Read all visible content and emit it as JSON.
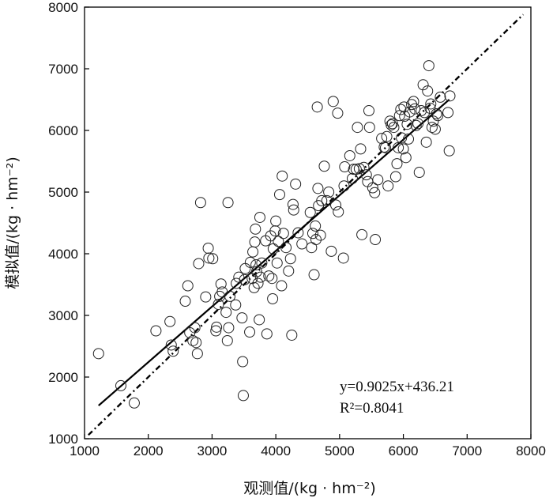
{
  "chart_data": {
    "type": "scatter",
    "title": "",
    "xlabel": "观测值/(kg · hm⁻²)",
    "ylabel": "模拟值/(kg · hm⁻²)",
    "xlim": [
      1000,
      8000
    ],
    "ylim": [
      1000,
      8000
    ],
    "x_ticks": [
      "1000",
      "2000",
      "3000",
      "4000",
      "5000",
      "6000",
      "7000",
      "8000"
    ],
    "y_ticks": [
      "1000",
      "2000",
      "3000",
      "4000",
      "5000",
      "6000",
      "7000",
      "8000"
    ],
    "grid": false,
    "legend": "none",
    "marker": "open-circle",
    "annotations": {
      "equation": "y=0.9025x+436.21",
      "r_squared": "R²=0.8041"
    },
    "fit_line": {
      "slope": 0.9025,
      "intercept": 436.21,
      "x_range": [
        1220,
        6720
      ],
      "style": "solid"
    },
    "reference_line": {
      "slope": 1,
      "intercept": 0,
      "x_range": [
        1060,
        7880
      ],
      "style": "dash-dot"
    },
    "points": [
      [
        1220,
        2380
      ],
      [
        1570,
        1860
      ],
      [
        1780,
        1580
      ],
      [
        2120,
        2750
      ],
      [
        2340,
        2900
      ],
      [
        2360,
        2520
      ],
      [
        2390,
        2420
      ],
      [
        2580,
        3230
      ],
      [
        2620,
        3480
      ],
      [
        2650,
        2720
      ],
      [
        2700,
        2590
      ],
      [
        2730,
        2800
      ],
      [
        2750,
        2560
      ],
      [
        2770,
        2380
      ],
      [
        2790,
        3840
      ],
      [
        2820,
        4830
      ],
      [
        2900,
        3300
      ],
      [
        2940,
        4090
      ],
      [
        2950,
        3930
      ],
      [
        3010,
        3920
      ],
      [
        3060,
        2750
      ],
      [
        3070,
        2810
      ],
      [
        3100,
        3180
      ],
      [
        3120,
        3310
      ],
      [
        3140,
        3510
      ],
      [
        3160,
        3380
      ],
      [
        3220,
        3050
      ],
      [
        3240,
        2590
      ],
      [
        3250,
        4830
      ],
      [
        3260,
        2800
      ],
      [
        3280,
        3310
      ],
      [
        3370,
        3170
      ],
      [
        3380,
        3520
      ],
      [
        3420,
        3620
      ],
      [
        3470,
        2960
      ],
      [
        3480,
        2250
      ],
      [
        3490,
        1700
      ],
      [
        3510,
        3580
      ],
      [
        3520,
        3760
      ],
      [
        3590,
        2730
      ],
      [
        3600,
        3860
      ],
      [
        3630,
        3600
      ],
      [
        3640,
        4030
      ],
      [
        3660,
        3450
      ],
      [
        3670,
        4190
      ],
      [
        3680,
        4400
      ],
      [
        3690,
        3820
      ],
      [
        3700,
        3710
      ],
      [
        3720,
        3520
      ],
      [
        3740,
        2930
      ],
      [
        3750,
        4590
      ],
      [
        3760,
        3620
      ],
      [
        3780,
        3850
      ],
      [
        3840,
        4210
      ],
      [
        3860,
        2700
      ],
      [
        3890,
        3640
      ],
      [
        3920,
        4290
      ],
      [
        3940,
        3600
      ],
      [
        3950,
        3270
      ],
      [
        3960,
        4080
      ],
      [
        3990,
        4370
      ],
      [
        4000,
        4530
      ],
      [
        4020,
        3850
      ],
      [
        4040,
        4200
      ],
      [
        4060,
        4960
      ],
      [
        4090,
        3480
      ],
      [
        4100,
        5260
      ],
      [
        4120,
        4330
      ],
      [
        4160,
        4100
      ],
      [
        4200,
        3720
      ],
      [
        4230,
        3920
      ],
      [
        4250,
        2680
      ],
      [
        4270,
        4800
      ],
      [
        4280,
        4710
      ],
      [
        4310,
        5130
      ],
      [
        4350,
        4340
      ],
      [
        4410,
        4160
      ],
      [
        4540,
        4670
      ],
      [
        4560,
        4100
      ],
      [
        4580,
        4330
      ],
      [
        4600,
        3660
      ],
      [
        4620,
        4450
      ],
      [
        4630,
        4230
      ],
      [
        4650,
        6380
      ],
      [
        4660,
        5060
      ],
      [
        4670,
        4780
      ],
      [
        4700,
        4300
      ],
      [
        4720,
        4860
      ],
      [
        4760,
        5420
      ],
      [
        4800,
        4860
      ],
      [
        4830,
        5000
      ],
      [
        4870,
        4040
      ],
      [
        4900,
        6470
      ],
      [
        4940,
        4790
      ],
      [
        4970,
        6280
      ],
      [
        4980,
        4680
      ],
      [
        5060,
        3930
      ],
      [
        5070,
        5100
      ],
      [
        5080,
        5410
      ],
      [
        5160,
        5590
      ],
      [
        5200,
        5220
      ],
      [
        5220,
        5370
      ],
      [
        5260,
        5370
      ],
      [
        5280,
        6050
      ],
      [
        5310,
        5380
      ],
      [
        5330,
        5700
      ],
      [
        5350,
        4310
      ],
      [
        5380,
        5400
      ],
      [
        5420,
        5280
      ],
      [
        5440,
        5170
      ],
      [
        5460,
        6320
      ],
      [
        5470,
        6050
      ],
      [
        5520,
        5070
      ],
      [
        5550,
        4990
      ],
      [
        5560,
        4230
      ],
      [
        5600,
        5200
      ],
      [
        5660,
        5870
      ],
      [
        5700,
        5730
      ],
      [
        5720,
        5720
      ],
      [
        5740,
        5900
      ],
      [
        5760,
        5100
      ],
      [
        5790,
        6150
      ],
      [
        5810,
        6090
      ],
      [
        5830,
        6110
      ],
      [
        5850,
        6050
      ],
      [
        5880,
        5250
      ],
      [
        5900,
        5460
      ],
      [
        5920,
        5720
      ],
      [
        5940,
        6240
      ],
      [
        5960,
        6340
      ],
      [
        5970,
        5880
      ],
      [
        6000,
        5700
      ],
      [
        6010,
        6380
      ],
      [
        6020,
        6230
      ],
      [
        6040,
        5560
      ],
      [
        6060,
        6100
      ],
      [
        6080,
        5860
      ],
      [
        6100,
        6300
      ],
      [
        6130,
        6420
      ],
      [
        6160,
        6470
      ],
      [
        6180,
        6350
      ],
      [
        6200,
        6080
      ],
      [
        6230,
        6110
      ],
      [
        6250,
        5320
      ],
      [
        6280,
        6320
      ],
      [
        6310,
        6740
      ],
      [
        6330,
        6290
      ],
      [
        6360,
        5810
      ],
      [
        6380,
        6640
      ],
      [
        6400,
        7050
      ],
      [
        6420,
        6360
      ],
      [
        6430,
        6430
      ],
      [
        6450,
        6050
      ],
      [
        6470,
        6150
      ],
      [
        6500,
        6020
      ],
      [
        6520,
        6270
      ],
      [
        6540,
        6240
      ],
      [
        6580,
        6540
      ],
      [
        6700,
        6290
      ],
      [
        6720,
        5670
      ],
      [
        6730,
        6560
      ]
    ]
  }
}
